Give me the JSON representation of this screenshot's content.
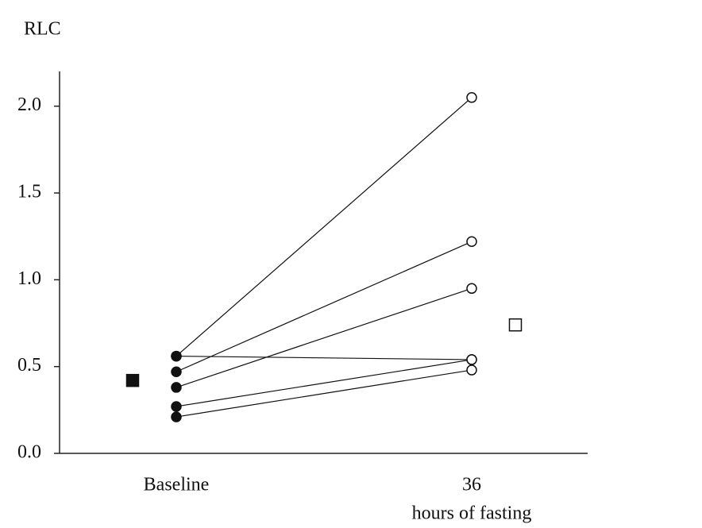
{
  "chart_data": {
    "type": "line",
    "title": "RLC",
    "categories": [
      "Baseline",
      "36"
    ],
    "x_label": "hours of fasting",
    "series": [
      {
        "color": "#111111",
        "values": [
          0.56,
          2.05
        ]
      },
      {
        "color": "#111111",
        "values": [
          0.56,
          0.54
        ]
      },
      {
        "color": "#111111",
        "values": [
          0.47,
          1.22
        ]
      },
      {
        "color": "#111111",
        "values": [
          0.38,
          0.95
        ]
      },
      {
        "color": "#111111",
        "values": [
          0.27,
          0.54
        ]
      },
      {
        "color": "#111111",
        "values": [
          0.21,
          0.48
        ]
      }
    ],
    "median_values": [
      0.42,
      0.74
    ],
    "ylim": [
      0,
      2.2
    ],
    "yticks": [
      {
        "value": 0,
        "label": "0.0"
      },
      0.5,
      {
        "value": 1,
        "label": "1.0"
      },
      1.5,
      {
        "value": 2,
        "label": "2.0"
      }
    ]
  }
}
